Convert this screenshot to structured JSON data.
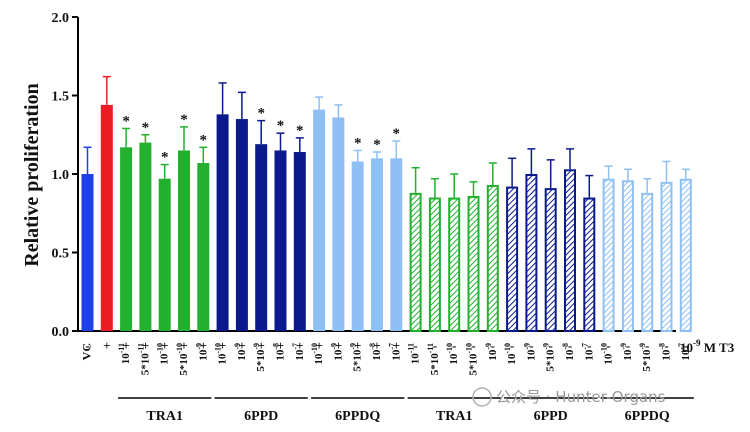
{
  "chart_data": {
    "type": "bar",
    "ylabel": "Relative proliferation",
    "ylim": [
      0,
      2.0
    ],
    "yticks": [
      "0.0",
      "0.5",
      "1.0",
      "1.5",
      "2.0"
    ],
    "t3_label": "10",
    "t3_exp": "-9",
    "t3_unit": "M T3",
    "vc_label": "VC",
    "vc_sign": "-",
    "plus": "+",
    "minus": "-",
    "significance_mark": "*",
    "colors": {
      "vc": "#1f3fe6",
      "t3": "#ee1c24",
      "tra1": "#22b02e",
      "ppd": "#0a1a8c",
      "ppdq": "#8ec0f5"
    },
    "bars": [
      {
        "group": "vc",
        "label": "VC",
        "value": 1.0,
        "error": 0.17,
        "sig": false,
        "hatched": false,
        "t3": "-"
      },
      {
        "group": "t3",
        "label": "",
        "value": 1.44,
        "error": 0.18,
        "sig": false,
        "hatched": false,
        "t3": "+"
      },
      {
        "group": "tra1",
        "label": "10^-11",
        "value": 1.17,
        "error": 0.12,
        "sig": true,
        "hatched": false,
        "t3": "+"
      },
      {
        "group": "tra1",
        "label": "5*10^-11",
        "value": 1.2,
        "error": 0.05,
        "sig": true,
        "hatched": false,
        "t3": "+"
      },
      {
        "group": "tra1",
        "label": "10^-10",
        "value": 0.97,
        "error": 0.09,
        "sig": true,
        "hatched": false,
        "t3": "+"
      },
      {
        "group": "tra1",
        "label": "5*10^-10",
        "value": 1.15,
        "error": 0.15,
        "sig": true,
        "hatched": false,
        "t3": "+"
      },
      {
        "group": "tra1",
        "label": "10^-9",
        "value": 1.07,
        "error": 0.1,
        "sig": true,
        "hatched": false,
        "t3": "+"
      },
      {
        "group": "ppd",
        "label": "10^-10",
        "value": 1.38,
        "error": 0.2,
        "sig": false,
        "hatched": false,
        "t3": "+"
      },
      {
        "group": "ppd",
        "label": "10^-9",
        "value": 1.35,
        "error": 0.17,
        "sig": false,
        "hatched": false,
        "t3": "+"
      },
      {
        "group": "ppd",
        "label": "5*10^-9",
        "value": 1.19,
        "error": 0.15,
        "sig": true,
        "hatched": false,
        "t3": "+"
      },
      {
        "group": "ppd",
        "label": "10^-8",
        "value": 1.15,
        "error": 0.11,
        "sig": true,
        "hatched": false,
        "t3": "+"
      },
      {
        "group": "ppd",
        "label": "10^-7",
        "value": 1.14,
        "error": 0.09,
        "sig": true,
        "hatched": false,
        "t3": "+"
      },
      {
        "group": "ppdq",
        "label": "10^-10",
        "value": 1.41,
        "error": 0.08,
        "sig": false,
        "hatched": false,
        "t3": "+"
      },
      {
        "group": "ppdq",
        "label": "10^-9",
        "value": 1.36,
        "error": 0.08,
        "sig": false,
        "hatched": false,
        "t3": "+"
      },
      {
        "group": "ppdq",
        "label": "5*10^-9",
        "value": 1.08,
        "error": 0.07,
        "sig": true,
        "hatched": false,
        "t3": "+"
      },
      {
        "group": "ppdq",
        "label": "10^-8",
        "value": 1.1,
        "error": 0.04,
        "sig": true,
        "hatched": false,
        "t3": "+"
      },
      {
        "group": "ppdq",
        "label": "10^-7",
        "value": 1.1,
        "error": 0.11,
        "sig": true,
        "hatched": false,
        "t3": "+"
      },
      {
        "group": "tra1",
        "label": "10^-11",
        "value": 0.88,
        "error": 0.16,
        "sig": false,
        "hatched": true,
        "t3": "-"
      },
      {
        "group": "tra1",
        "label": "5*10^-11",
        "value": 0.85,
        "error": 0.12,
        "sig": false,
        "hatched": true,
        "t3": "-"
      },
      {
        "group": "tra1",
        "label": "10^-10",
        "value": 0.85,
        "error": 0.15,
        "sig": false,
        "hatched": true,
        "t3": "-"
      },
      {
        "group": "tra1",
        "label": "5*10^-10",
        "value": 0.86,
        "error": 0.09,
        "sig": false,
        "hatched": true,
        "t3": "-"
      },
      {
        "group": "tra1",
        "label": "10^-9",
        "value": 0.93,
        "error": 0.14,
        "sig": false,
        "hatched": true,
        "t3": "-"
      },
      {
        "group": "ppd",
        "label": "10^-10",
        "value": 0.92,
        "error": 0.18,
        "sig": false,
        "hatched": true,
        "t3": "-"
      },
      {
        "group": "ppd",
        "label": "10^-9",
        "value": 1.0,
        "error": 0.16,
        "sig": false,
        "hatched": true,
        "t3": "-"
      },
      {
        "group": "ppd",
        "label": "5*10^-9",
        "value": 0.91,
        "error": 0.18,
        "sig": false,
        "hatched": true,
        "t3": "-"
      },
      {
        "group": "ppd",
        "label": "10^-8",
        "value": 1.03,
        "error": 0.13,
        "sig": false,
        "hatched": true,
        "t3": "-"
      },
      {
        "group": "ppd",
        "label": "10^-7",
        "value": 0.85,
        "error": 0.14,
        "sig": false,
        "hatched": true,
        "t3": "-"
      },
      {
        "group": "ppdq",
        "label": "10^-10",
        "value": 0.97,
        "error": 0.08,
        "sig": false,
        "hatched": true,
        "t3": "-"
      },
      {
        "group": "ppdq",
        "label": "10^-9",
        "value": 0.96,
        "error": 0.07,
        "sig": false,
        "hatched": true,
        "t3": "-"
      },
      {
        "group": "ppdq",
        "label": "5*10^-9",
        "value": 0.88,
        "error": 0.09,
        "sig": false,
        "hatched": true,
        "t3": "-"
      },
      {
        "group": "ppdq",
        "label": "10^-8",
        "value": 0.95,
        "error": 0.13,
        "sig": false,
        "hatched": true,
        "t3": "-"
      },
      {
        "group": "ppdq",
        "label": "10^-7",
        "value": 0.97,
        "error": 0.06,
        "sig": false,
        "hatched": true,
        "t3": "-"
      }
    ],
    "group_labels": [
      {
        "text": "TRA1",
        "from": 2,
        "to": 6
      },
      {
        "text": "6PPD",
        "from": 7,
        "to": 11
      },
      {
        "text": "6PPDQ",
        "from": 12,
        "to": 16
      },
      {
        "text": "TRA1",
        "from": 17,
        "to": 21
      },
      {
        "text": "6PPD",
        "from": 22,
        "to": 26
      },
      {
        "text": "6PPDQ",
        "from": 27,
        "to": 31
      }
    ]
  },
  "watermark": "公众号 · Hunter-Organs"
}
